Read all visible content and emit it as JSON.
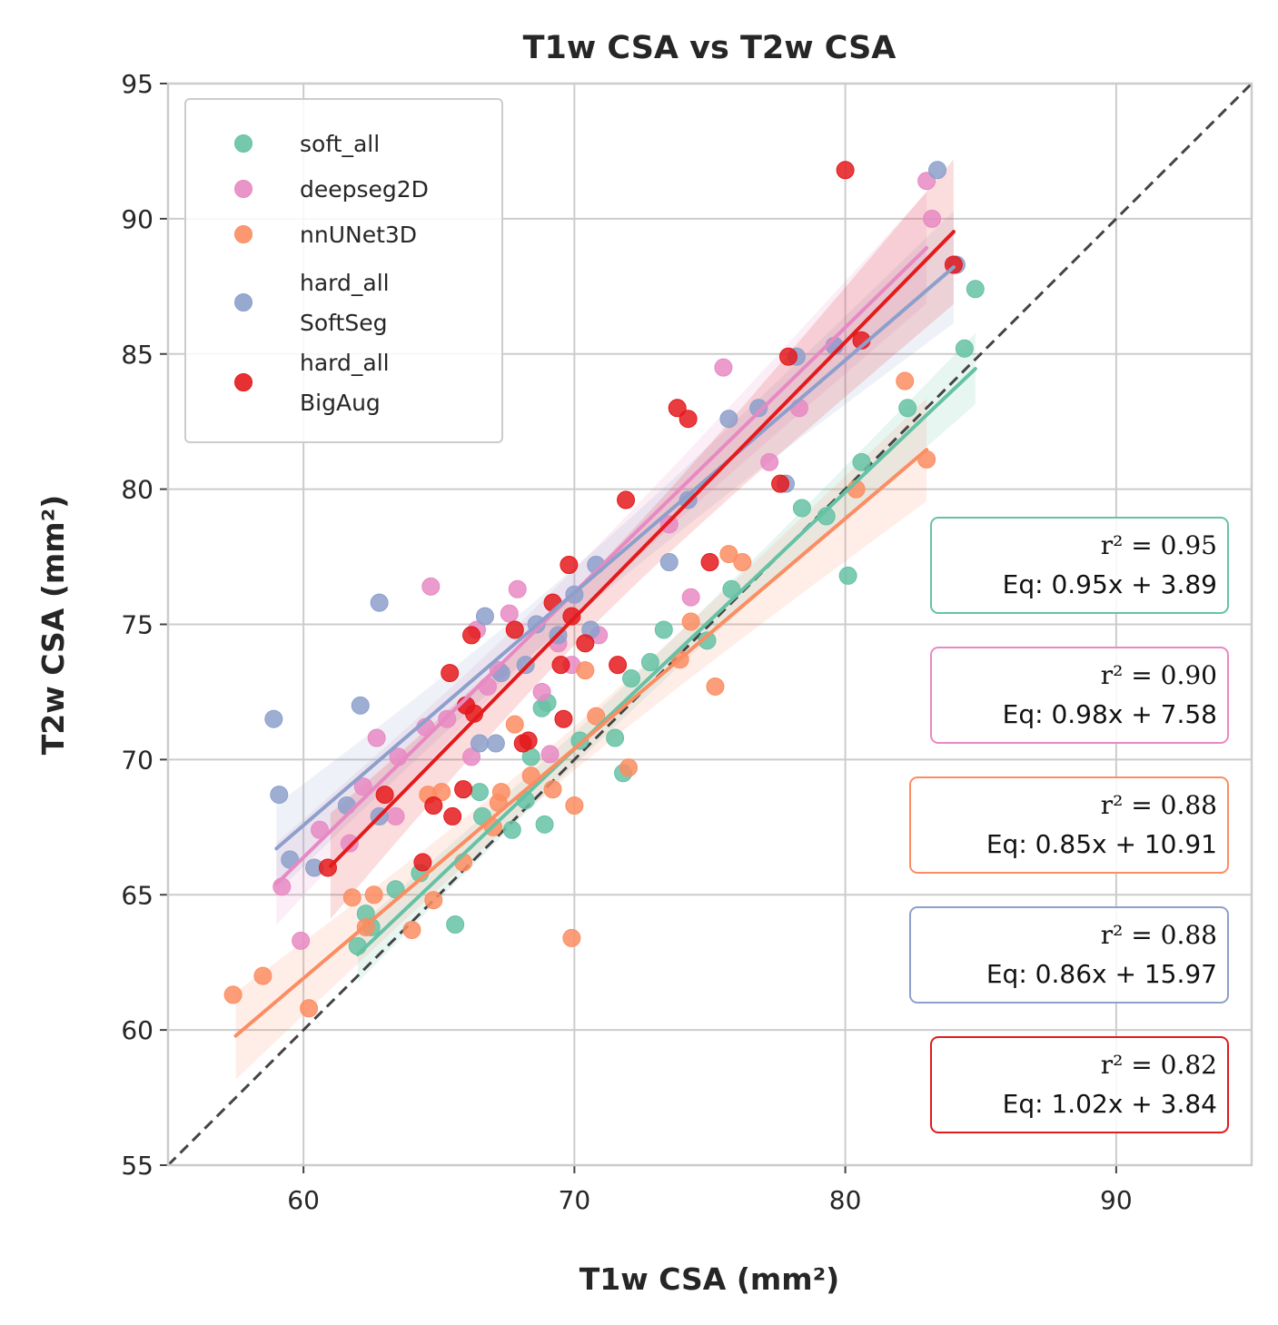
{
  "chart_data": {
    "type": "scatter",
    "title": "T1w CSA vs T2w CSA",
    "xlabel": "T1w CSA (mm²)",
    "ylabel": "T2w CSA (mm²)",
    "xlim": [
      55,
      95
    ],
    "ylim": [
      55,
      95
    ],
    "xticks": [
      "60",
      "70",
      "80",
      "90"
    ],
    "yticks": [
      "55",
      "60",
      "65",
      "70",
      "75",
      "80",
      "85",
      "90",
      "95"
    ],
    "grid": true,
    "legend_position": "top-left",
    "identity_line": true,
    "series": [
      {
        "name": "soft_all",
        "legend_lines": [
          "soft_all"
        ],
        "color": "#66c2a5",
        "fit": {
          "slope": 0.95,
          "intercept": 3.89,
          "x_range": [
            62.0,
            84.8
          ]
        },
        "annotation": {
          "r2": "r² = 0.95",
          "eq": "Eq: 0.95x + 3.89"
        },
        "points": [
          [
            62.0,
            63.1
          ],
          [
            62.3,
            64.3
          ],
          [
            62.5,
            63.8
          ],
          [
            63.4,
            65.2
          ],
          [
            64.3,
            65.8
          ],
          [
            65.6,
            63.9
          ],
          [
            66.5,
            68.8
          ],
          [
            66.6,
            67.9
          ],
          [
            67.7,
            67.4
          ],
          [
            68.2,
            68.5
          ],
          [
            68.4,
            70.1
          ],
          [
            68.8,
            71.9
          ],
          [
            69.0,
            72.1
          ],
          [
            68.9,
            67.6
          ],
          [
            70.2,
            70.7
          ],
          [
            71.5,
            70.8
          ],
          [
            71.8,
            69.5
          ],
          [
            72.1,
            73.0
          ],
          [
            72.8,
            73.6
          ],
          [
            73.3,
            74.8
          ],
          [
            74.9,
            74.4
          ],
          [
            75.8,
            76.3
          ],
          [
            78.4,
            79.3
          ],
          [
            79.3,
            79.0
          ],
          [
            80.1,
            76.8
          ],
          [
            80.6,
            81.0
          ],
          [
            82.3,
            83.0
          ],
          [
            84.4,
            85.2
          ],
          [
            84.8,
            87.4
          ]
        ]
      },
      {
        "name": "deepseg2D",
        "legend_lines": [
          "deepseg2D"
        ],
        "color": "#e78ac3",
        "fit": {
          "slope": 0.98,
          "intercept": 7.58,
          "x_range": [
            59.0,
            83.0
          ]
        },
        "annotation": {
          "r2": "r² = 0.90",
          "eq": "Eq: 0.98x + 7.58"
        },
        "points": [
          [
            59.2,
            65.3
          ],
          [
            59.9,
            63.3
          ],
          [
            60.6,
            67.4
          ],
          [
            61.7,
            66.9
          ],
          [
            62.2,
            69.0
          ],
          [
            62.7,
            70.8
          ],
          [
            63.4,
            67.9
          ],
          [
            63.5,
            70.1
          ],
          [
            64.5,
            71.2
          ],
          [
            64.7,
            76.4
          ],
          [
            65.3,
            71.5
          ],
          [
            66.0,
            72.0
          ],
          [
            66.2,
            70.1
          ],
          [
            66.4,
            74.8
          ],
          [
            66.8,
            72.7
          ],
          [
            67.2,
            73.3
          ],
          [
            67.6,
            75.4
          ],
          [
            67.9,
            76.3
          ],
          [
            68.8,
            72.5
          ],
          [
            69.1,
            70.2
          ],
          [
            69.4,
            74.3
          ],
          [
            69.9,
            73.5
          ],
          [
            70.9,
            74.6
          ],
          [
            73.5,
            78.7
          ],
          [
            74.3,
            76.0
          ],
          [
            75.5,
            84.5
          ],
          [
            77.2,
            81.0
          ],
          [
            78.3,
            83.0
          ],
          [
            79.6,
            85.3
          ],
          [
            83.0,
            91.4
          ],
          [
            83.2,
            90.0
          ]
        ]
      },
      {
        "name": "nnUNet3D",
        "legend_lines": [
          "nnUNet3D"
        ],
        "color": "#fc8d62",
        "fit": {
          "slope": 0.85,
          "intercept": 10.91,
          "x_range": [
            57.5,
            83.0
          ]
        },
        "annotation": {
          "r2": "r² = 0.88",
          "eq": "Eq: 0.85x + 10.91"
        },
        "points": [
          [
            57.4,
            61.3
          ],
          [
            58.5,
            62.0
          ],
          [
            60.2,
            60.8
          ],
          [
            61.8,
            64.9
          ],
          [
            62.3,
            63.8
          ],
          [
            62.6,
            65.0
          ],
          [
            64.0,
            63.7
          ],
          [
            64.6,
            68.7
          ],
          [
            64.8,
            64.8
          ],
          [
            65.1,
            68.8
          ],
          [
            65.9,
            66.2
          ],
          [
            67.0,
            67.5
          ],
          [
            67.2,
            68.4
          ],
          [
            67.3,
            68.8
          ],
          [
            67.8,
            71.3
          ],
          [
            68.4,
            69.4
          ],
          [
            69.2,
            68.9
          ],
          [
            69.9,
            63.4
          ],
          [
            70.0,
            68.3
          ],
          [
            70.4,
            73.3
          ],
          [
            70.8,
            71.6
          ],
          [
            72.0,
            69.7
          ],
          [
            73.9,
            73.7
          ],
          [
            74.3,
            75.1
          ],
          [
            75.2,
            72.7
          ],
          [
            75.7,
            77.6
          ],
          [
            76.2,
            77.3
          ],
          [
            80.4,
            80.0
          ],
          [
            82.2,
            84.0
          ],
          [
            83.0,
            81.1
          ]
        ]
      },
      {
        "name": "hard_all SoftSeg",
        "legend_lines": [
          "hard_all",
          "SoftSeg"
        ],
        "color": "#8da0cb",
        "fit": {
          "slope": 0.86,
          "intercept": 15.97,
          "x_range": [
            59.0,
            84.0
          ]
        },
        "annotation": {
          "r2": "r² = 0.88",
          "eq": "Eq: 0.86x + 15.97"
        },
        "points": [
          [
            58.9,
            71.5
          ],
          [
            59.1,
            68.7
          ],
          [
            59.5,
            66.3
          ],
          [
            60.4,
            66.0
          ],
          [
            61.6,
            68.3
          ],
          [
            62.1,
            72.0
          ],
          [
            62.8,
            75.8
          ],
          [
            62.8,
            67.9
          ],
          [
            66.5,
            70.6
          ],
          [
            66.7,
            75.3
          ],
          [
            67.1,
            70.6
          ],
          [
            67.3,
            73.2
          ],
          [
            68.2,
            73.5
          ],
          [
            68.6,
            75.0
          ],
          [
            69.4,
            74.6
          ],
          [
            70.0,
            76.1
          ],
          [
            70.6,
            74.8
          ],
          [
            70.8,
            77.2
          ],
          [
            73.5,
            77.3
          ],
          [
            74.2,
            79.6
          ],
          [
            75.7,
            82.6
          ],
          [
            76.8,
            83.0
          ],
          [
            77.8,
            80.2
          ],
          [
            78.2,
            84.9
          ],
          [
            79.6,
            85.3
          ],
          [
            83.4,
            91.8
          ],
          [
            84.1,
            88.3
          ]
        ]
      },
      {
        "name": "hard_all BigAug",
        "legend_lines": [
          "hard_all",
          "BigAug"
        ],
        "color": "#e41a1c",
        "fit": {
          "slope": 1.02,
          "intercept": 3.84,
          "x_range": [
            61.0,
            84.0
          ]
        },
        "annotation": {
          "r2": "r² = 0.82",
          "eq": "Eq: 1.02x + 3.84"
        },
        "points": [
          [
            60.9,
            66.0
          ],
          [
            63.0,
            68.7
          ],
          [
            64.4,
            66.2
          ],
          [
            64.8,
            68.3
          ],
          [
            65.4,
            73.2
          ],
          [
            65.5,
            67.9
          ],
          [
            65.9,
            68.9
          ],
          [
            66.0,
            72.0
          ],
          [
            66.2,
            74.6
          ],
          [
            66.3,
            71.7
          ],
          [
            67.8,
            74.8
          ],
          [
            68.1,
            70.6
          ],
          [
            68.3,
            70.7
          ],
          [
            69.2,
            75.8
          ],
          [
            69.5,
            73.5
          ],
          [
            69.6,
            71.5
          ],
          [
            69.8,
            77.2
          ],
          [
            69.9,
            75.3
          ],
          [
            70.4,
            74.3
          ],
          [
            71.6,
            73.5
          ],
          [
            71.9,
            79.6
          ],
          [
            73.8,
            83.0
          ],
          [
            74.2,
            82.6
          ],
          [
            75.0,
            77.3
          ],
          [
            77.6,
            80.2
          ],
          [
            77.9,
            84.9
          ],
          [
            80.0,
            91.8
          ],
          [
            80.6,
            85.5
          ],
          [
            84.0,
            88.3
          ]
        ]
      }
    ]
  }
}
